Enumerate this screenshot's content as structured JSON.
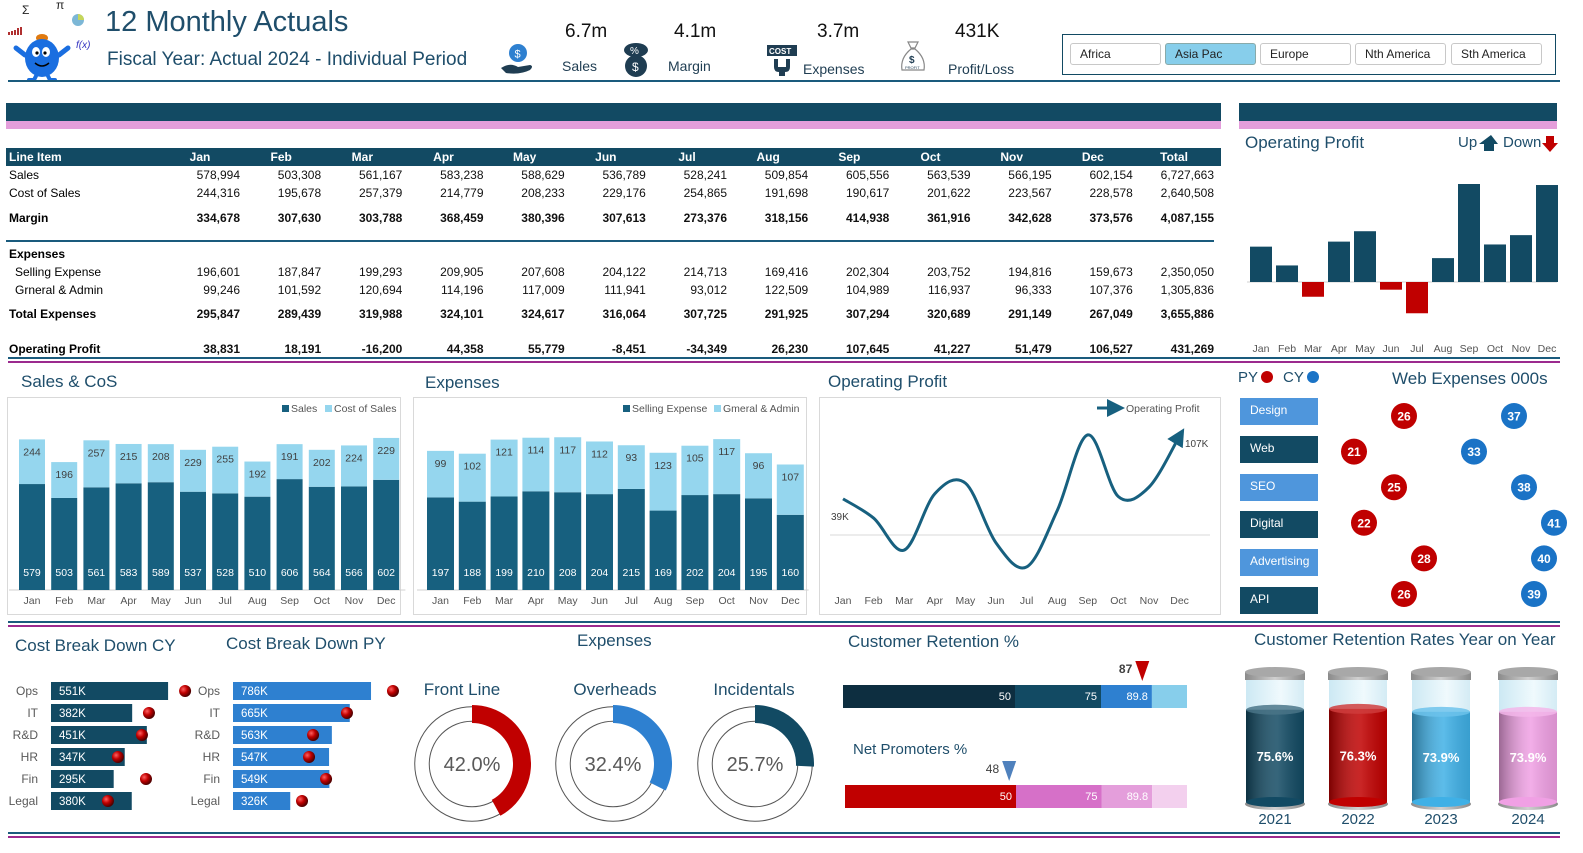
{
  "header": {
    "title": "12 Monthly Actuals",
    "subtitle": "Fiscal Year: Actual 2024 - Individual Period",
    "logo_symbols": [
      "Σ",
      "π",
      "f(x)"
    ],
    "kpis": [
      {
        "value": "6.7m",
        "label": "Sales",
        "icon": "money-bag-hand-icon"
      },
      {
        "value": "4.1m",
        "label": "Margin",
        "icon": "percent-dollar-icon"
      },
      {
        "value": "3.7m",
        "label": "Expenses",
        "icon": "cost-icon"
      },
      {
        "value": "431K",
        "label": "Profit/Loss",
        "icon": "profit-bag-icon"
      }
    ]
  },
  "slicer": {
    "items": [
      "Africa",
      "Asia Pac",
      "Europe",
      "Nth America",
      "Sth America"
    ],
    "selected": "Asia Pac"
  },
  "colors": {
    "navy": "#124a63",
    "sales": "#17607f",
    "light": "#95d6ee",
    "red": "#c00000",
    "blue": "#2e80d0",
    "pink": "#e49edb",
    "purple_line": "#9b2a8e"
  },
  "table": {
    "headers": [
      "Line Item",
      "Jan",
      "Feb",
      "Mar",
      "Apr",
      "May",
      "Jun",
      "Jul",
      "Aug",
      "Sep",
      "Oct",
      "Nov",
      "Dec",
      "Total"
    ],
    "rows": [
      {
        "label": "Sales",
        "bold": false,
        "indent": false,
        "values": [
          "578,994",
          "503,308",
          "561,167",
          "583,238",
          "588,629",
          "536,789",
          "528,241",
          "509,854",
          "605,556",
          "563,539",
          "566,195",
          "602,154",
          "6,727,663"
        ]
      },
      {
        "label": "Cost of Sales",
        "bold": false,
        "indent": false,
        "values": [
          "244,316",
          "195,678",
          "257,379",
          "214,779",
          "208,233",
          "229,176",
          "254,865",
          "191,698",
          "190,617",
          "201,622",
          "223,567",
          "228,578",
          "2,640,508"
        ]
      },
      {
        "label": "Margin",
        "bold": true,
        "indent": false,
        "values": [
          "334,678",
          "307,630",
          "303,788",
          "368,459",
          "380,396",
          "307,613",
          "273,376",
          "318,156",
          "414,938",
          "361,916",
          "342,628",
          "373,576",
          "4,087,155"
        ]
      },
      {
        "label": "Expenses",
        "bold": true,
        "indent": false,
        "values": []
      },
      {
        "label": "Selling Expense",
        "bold": false,
        "indent": true,
        "values": [
          "196,601",
          "187,847",
          "199,293",
          "209,905",
          "207,608",
          "204,122",
          "214,713",
          "169,416",
          "202,304",
          "203,752",
          "194,816",
          "159,673",
          "2,350,050"
        ]
      },
      {
        "label": "Grneral & Admin",
        "bold": false,
        "indent": true,
        "values": [
          "99,246",
          "101,592",
          "120,694",
          "114,196",
          "117,009",
          "111,941",
          "93,012",
          "122,509",
          "104,989",
          "116,937",
          "96,333",
          "107,376",
          "1,305,836"
        ]
      },
      {
        "label": "Total Expenses",
        "bold": true,
        "indent": false,
        "values": [
          "295,847",
          "289,439",
          "319,988",
          "324,101",
          "324,617",
          "316,064",
          "307,725",
          "291,925",
          "307,294",
          "320,689",
          "291,149",
          "267,049",
          "3,655,886"
        ]
      },
      {
        "label": "Operating Profit",
        "bold": true,
        "indent": false,
        "values": [
          "38,831",
          "18,191",
          "-16,200",
          "44,358",
          "55,779",
          "-8,451",
          "-34,349",
          "26,230",
          "107,645",
          "41,227",
          "51,479",
          "106,527",
          "431,269"
        ]
      }
    ]
  },
  "sections": {
    "sales_cos": "Sales & CoS",
    "expenses": "Expenses",
    "op_profit_line": "Operating Profit",
    "op_profit_bars": "Operating Profit",
    "web_expenses": "Web Expenses 000s",
    "cost_cy": "Cost Break Down CY",
    "cost_py": "Cost Break Down PY",
    "expense_donuts": "Expenses",
    "customer_retention": "Customer Retention %",
    "net_promoters": "Net Promoters %",
    "retention_yoy": "Customer Retention Rates Year on Year"
  },
  "chart_data": [
    {
      "id": "op_profit_bars",
      "type": "bar",
      "title": "Operating Profit",
      "categories": [
        "Jan",
        "Feb",
        "Mar",
        "Apr",
        "May",
        "Jun",
        "Jul",
        "Aug",
        "Sep",
        "Oct",
        "Nov",
        "Dec"
      ],
      "values": [
        38831,
        18191,
        -16200,
        44358,
        55779,
        -8451,
        -34349,
        26230,
        107645,
        41227,
        51479,
        106527
      ],
      "legend": [
        "Up",
        "Down"
      ],
      "legend_placement": "top-right",
      "colors": {
        "up": "#124a63",
        "down": "#c00000"
      }
    },
    {
      "id": "sales_cos",
      "type": "bar",
      "stacked": true,
      "title": "Sales & CoS",
      "unit": "k",
      "categories": [
        "Jan",
        "Feb",
        "Mar",
        "Apr",
        "May",
        "Jun",
        "Jul",
        "Aug",
        "Sep",
        "Oct",
        "Nov",
        "Dec"
      ],
      "series": [
        {
          "name": "Sales",
          "color": "#17607f",
          "values": [
            579,
            503,
            561,
            583,
            589,
            537,
            528,
            510,
            606,
            564,
            566,
            602
          ]
        },
        {
          "name": "Cost of Sales",
          "color": "#95d6ee",
          "values": [
            244,
            196,
            257,
            215,
            208,
            229,
            255,
            192,
            191,
            202,
            224,
            229
          ]
        }
      ],
      "legend_placement": "top-right"
    },
    {
      "id": "expenses",
      "type": "bar",
      "stacked": true,
      "title": "Expenses",
      "unit": "k",
      "categories": [
        "Jan",
        "Feb",
        "Mar",
        "Apr",
        "May",
        "Jun",
        "Jul",
        "Aug",
        "Sep",
        "Oct",
        "Nov",
        "Dec"
      ],
      "series": [
        {
          "name": "Selling Expense",
          "color": "#17607f",
          "values": [
            197,
            188,
            199,
            210,
            208,
            204,
            215,
            169,
            202,
            204,
            195,
            160
          ]
        },
        {
          "name": "Gmeral & Admin",
          "color": "#95d6ee",
          "values": [
            99,
            102,
            121,
            114,
            117,
            112,
            93,
            123,
            105,
            117,
            96,
            107
          ]
        }
      ],
      "legend_placement": "top-right"
    },
    {
      "id": "op_profit_line",
      "type": "line",
      "title": "Operating Profit",
      "categories": [
        "Jan",
        "Feb",
        "Mar",
        "Apr",
        "May",
        "Jun",
        "Jul",
        "Aug",
        "Sep",
        "Oct",
        "Nov",
        "Dec"
      ],
      "series": [
        {
          "name": "Operating Profit",
          "color": "#17607f",
          "values": [
            38831,
            18191,
            -16200,
            44358,
            55779,
            -8451,
            -34349,
            26230,
            107645,
            41227,
            51479,
            106527
          ]
        }
      ],
      "labels": {
        "first": "39K",
        "last": "107K"
      },
      "legend_placement": "top-right",
      "smooth": true
    },
    {
      "id": "web_expenses",
      "type": "scatter",
      "title": "Web Expenses 000s",
      "categories": [
        "Design",
        "Web",
        "SEO",
        "Digital",
        "Advertising",
        "API"
      ],
      "series": [
        {
          "name": "PY",
          "color": "#c00000",
          "values": [
            26,
            21,
            25,
            22,
            28,
            26
          ]
        },
        {
          "name": "CY",
          "color": "#1a73c6",
          "values": [
            37,
            33,
            38,
            41,
            40,
            39
          ]
        }
      ],
      "legend_placement": "top-left"
    },
    {
      "id": "cost_cy",
      "type": "bar",
      "orientation": "horizontal",
      "title": "Cost Break Down CY",
      "categories": [
        "Ops",
        "IT",
        "R&D",
        "HR",
        "Fin",
        "Legal"
      ],
      "values": [
        551,
        382,
        451,
        347,
        295,
        380
      ],
      "labels": [
        "551K",
        "382K",
        "451K",
        "347K",
        "295K",
        "380K"
      ],
      "markers": [
        631,
        461,
        428,
        315,
        447,
        268
      ],
      "color": "#124a63"
    },
    {
      "id": "cost_py",
      "type": "bar",
      "orientation": "horizontal",
      "title": "Cost Break Down PY",
      "categories": [
        "Ops",
        "IT",
        "R&D",
        "HR",
        "Fin",
        "Legal"
      ],
      "values": [
        786,
        665,
        563,
        547,
        549,
        326
      ],
      "labels": [
        "786K",
        "665K",
        "563K",
        "547K",
        "549K",
        "326K"
      ],
      "markers": [
        911,
        649,
        456,
        433,
        530,
        393
      ],
      "color": "#2e80d0"
    },
    {
      "id": "expense_donuts",
      "type": "pie",
      "title": "Expenses",
      "items": [
        {
          "name": "Front Line",
          "value": 42.0,
          "label": "42.0%",
          "color": "#c00000"
        },
        {
          "name": "Overheads",
          "value": 32.4,
          "label": "32.4%",
          "color": "#2e80d0"
        },
        {
          "name": "Incidentals",
          "value": 25.7,
          "label": "25.7%",
          "color": "#124a63"
        }
      ]
    },
    {
      "id": "customer_retention",
      "type": "bar",
      "subtype": "bullet",
      "title": "Customer Retention %",
      "bands": [
        50,
        75,
        89.8,
        100
      ],
      "band_labels": [
        "50",
        "75",
        "89.8"
      ],
      "marker": 87,
      "marker_label": "87",
      "colors": [
        "#0d2e40",
        "#124a63",
        "#2e80d0",
        "#87ceeb"
      ],
      "marker_color": "#c00000",
      "xlim": [
        0,
        100
      ]
    },
    {
      "id": "net_promoters",
      "type": "bar",
      "subtype": "bullet",
      "title": "Net Promoters %",
      "bands": [
        50,
        75,
        89.8,
        100
      ],
      "band_labels": [
        "50",
        "75",
        "89.8"
      ],
      "marker": 48,
      "marker_label": "48",
      "colors": [
        "#c00000",
        "#d670c8",
        "#e49edb",
        "#f3d0ee"
      ],
      "marker_color": "#4f81bd",
      "xlim": [
        0,
        100
      ]
    },
    {
      "id": "retention_yoy",
      "type": "bar",
      "subtype": "cylinder",
      "title": "Customer Retention Rates Year on Year",
      "categories": [
        "2021",
        "2022",
        "2023",
        "2024"
      ],
      "values": [
        75.6,
        76.3,
        73.9,
        73.9
      ],
      "labels": [
        "75.6%",
        "76.3%",
        "73.9%",
        "73.9%"
      ],
      "colors": [
        "#124a63",
        "#c00000",
        "#3fb0e6",
        "#f0a0e4"
      ],
      "ylim": [
        0,
        100
      ]
    }
  ]
}
